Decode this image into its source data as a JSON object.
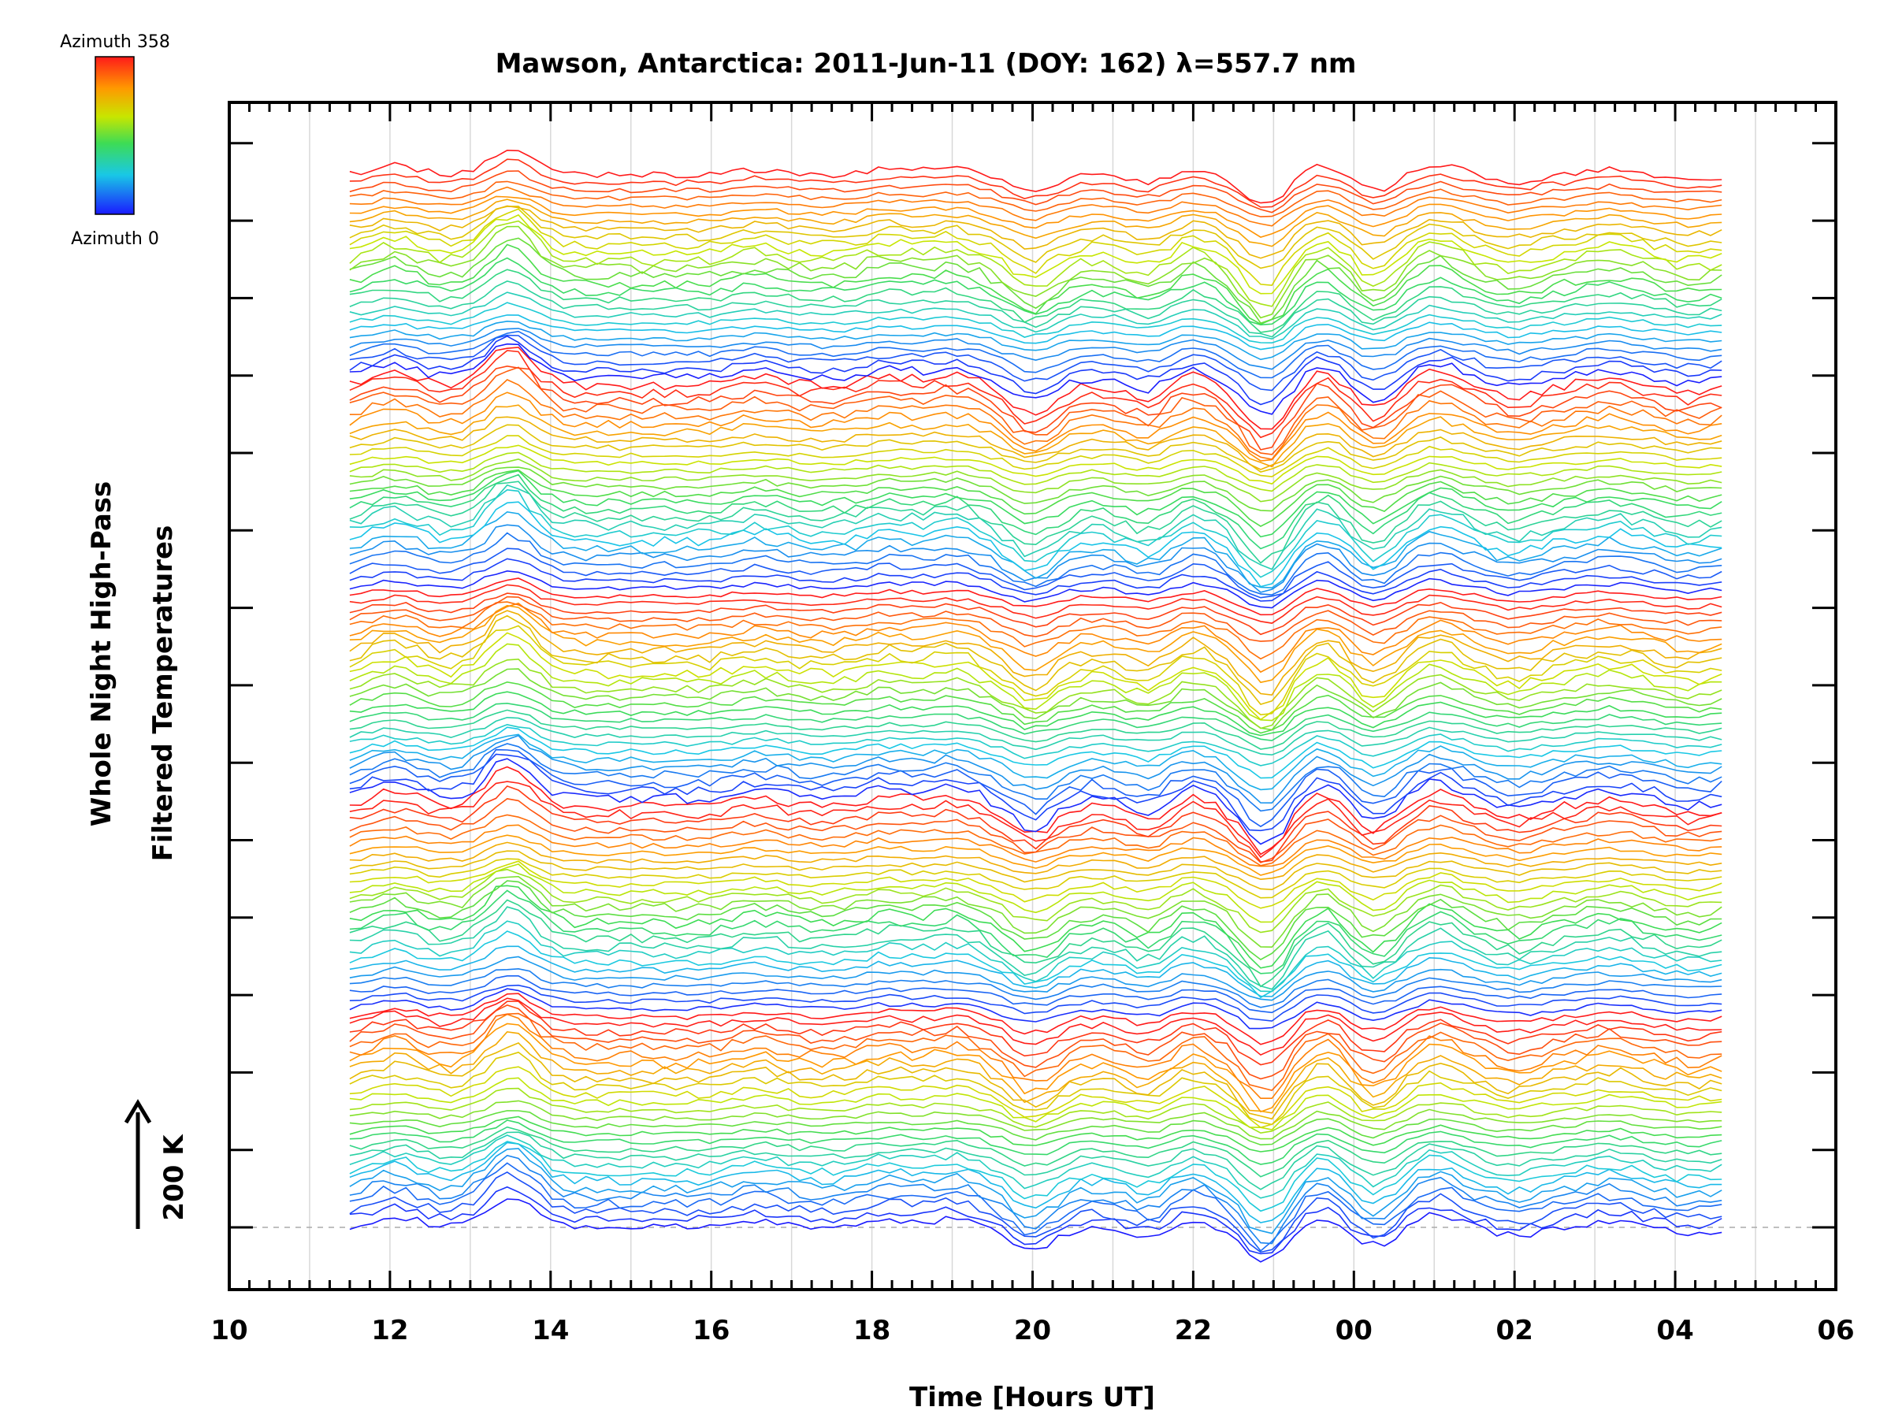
{
  "chart_data": {
    "type": "line",
    "title": "Mawson, Antarctica: 2011-Jun-11 (DOY: 162) λ=557.7 nm",
    "xlabel": "Time [Hours UT]",
    "ylabel_lines": [
      "Whole Night High-Pass",
      "Filtered Temperatures"
    ],
    "x_tick_labels": [
      "10",
      "12",
      "14",
      "16",
      "18",
      "20",
      "22",
      "00",
      "02",
      "04",
      "06"
    ],
    "xlim_hours": [
      10,
      30
    ],
    "x_range_data_hours": [
      11.5,
      28.7
    ],
    "scale_bar_label": "200 K",
    "colorbar": {
      "top_label": "Azimuth 358",
      "bottom_label": "Azimuth 0",
      "colormap": "rainbow"
    },
    "line_count": 136,
    "group_count": 5,
    "grid": true,
    "colors": {
      "low_azimuth": "#1a1aff",
      "mid_azimuth": "#d8e800",
      "high_azimuth": "#ff1a1a"
    },
    "features": [
      {
        "x": 12.05,
        "amp": 0.55
      },
      {
        "x": 13.5,
        "amp": 1.4
      },
      {
        "x": 16.6,
        "amp": 0.3
      },
      {
        "x": 18.2,
        "amp": 0.35
      },
      {
        "x": 19.0,
        "amp": 0.4
      },
      {
        "x": 20.0,
        "amp": -1.0
      },
      {
        "x": 21.5,
        "amp": -0.6
      },
      {
        "x": 21.9,
        "amp": 0.5
      },
      {
        "x": 22.9,
        "amp": -1.6
      },
      {
        "x": 23.6,
        "amp": 0.6
      },
      {
        "x": 24.25,
        "amp": -0.9
      },
      {
        "x": 25.0,
        "amp": 0.6
      },
      {
        "x": 26.0,
        "amp": -0.4
      },
      {
        "x": 27.2,
        "amp": 0.3
      },
      {
        "x": 28.2,
        "amp": -0.25
      }
    ]
  }
}
